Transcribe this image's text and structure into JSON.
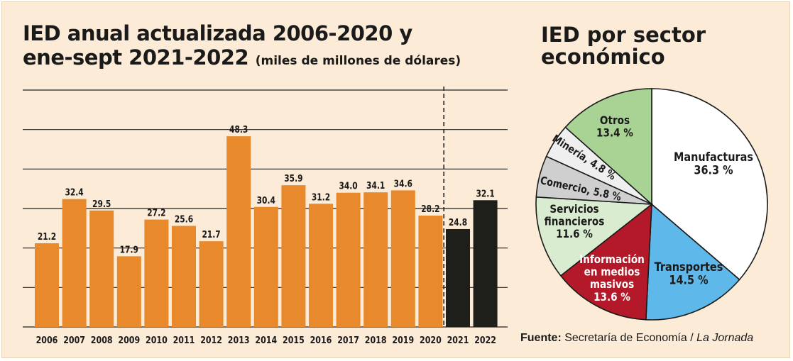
{
  "header": {
    "bar_title_line1": "IED anual actualizada 2006-2020 y",
    "bar_title_line2": "ene-sept 2021-2022",
    "bar_units": "(miles de millones de dólares)",
    "pie_title_line1": "IED por sector",
    "pie_title_line2": "económico"
  },
  "source": {
    "label": "Fuente:",
    "text": "Secretaría de Economía /",
    "outlet": "La Jornada"
  },
  "colors": {
    "annual": "#e8892b",
    "partial": "#1e1e1a",
    "background": "#fcebd7",
    "grid": "#222222"
  },
  "chart_data": [
    {
      "type": "bar",
      "title": "IED anual actualizada 2006-2020 y ene-sept 2021-2022",
      "ylabel": "miles de millones de dólares",
      "ylim": [
        0,
        60
      ],
      "grid": true,
      "categories": [
        "2006",
        "2007",
        "2008",
        "2009",
        "2010",
        "2011",
        "2012",
        "2013",
        "2014",
        "2015",
        "2016",
        "2017",
        "2018",
        "2019",
        "2020",
        "2021",
        "2022"
      ],
      "values": [
        21.2,
        32.4,
        29.5,
        17.9,
        27.2,
        25.6,
        21.7,
        48.3,
        30.4,
        35.9,
        31.2,
        34.0,
        34.1,
        34.6,
        28.2,
        24.8,
        32.1
      ],
      "labels": [
        "21.2",
        "32.4",
        "29.5",
        "17.9",
        "27.2",
        "25.6",
        "21.7",
        "48.3",
        "30.4",
        "35.9",
        "31.2",
        "34.0",
        "34.1",
        "34.6",
        "28.2",
        "24.8",
        "32.1"
      ],
      "colors": [
        "#e8892b",
        "#e8892b",
        "#e8892b",
        "#e8892b",
        "#e8892b",
        "#e8892b",
        "#e8892b",
        "#e8892b",
        "#e8892b",
        "#e8892b",
        "#e8892b",
        "#e8892b",
        "#e8892b",
        "#e8892b",
        "#e8892b",
        "#1e1e1a",
        "#1e1e1a"
      ]
    },
    {
      "type": "pie",
      "title": "IED por sector económico",
      "slices": [
        {
          "label": "Manufacturas",
          "value": 36.3,
          "text": "36.3 %",
          "color": "#ffffff",
          "text_color": "#1a1a1a"
        },
        {
          "label": "Transportes",
          "value": 14.5,
          "text": "14.5 %",
          "color": "#5fb8ea",
          "text_color": "#1a1a1a"
        },
        {
          "label": "Información en medios masivos",
          "value": 13.6,
          "text": "13.6 %",
          "color": "#b31928",
          "text_color": "#ffffff"
        },
        {
          "label": "Servicios financieros",
          "value": 11.6,
          "text": "11.6 %",
          "color": "#d9ecd0",
          "text_color": "#1a1a1a"
        },
        {
          "label": "Comercio",
          "value": 5.8,
          "text": "5.8 %",
          "color": "#cfcfcf",
          "text_color": "#1a1a1a"
        },
        {
          "label": "Minería",
          "value": 4.8,
          "text": "4.8 %",
          "color": "#efefef",
          "text_color": "#1a1a1a"
        },
        {
          "label": "Otros",
          "value": 13.4,
          "text": "13.4 %",
          "color": "#a9d295",
          "text_color": "#1a1a1a"
        }
      ]
    }
  ]
}
